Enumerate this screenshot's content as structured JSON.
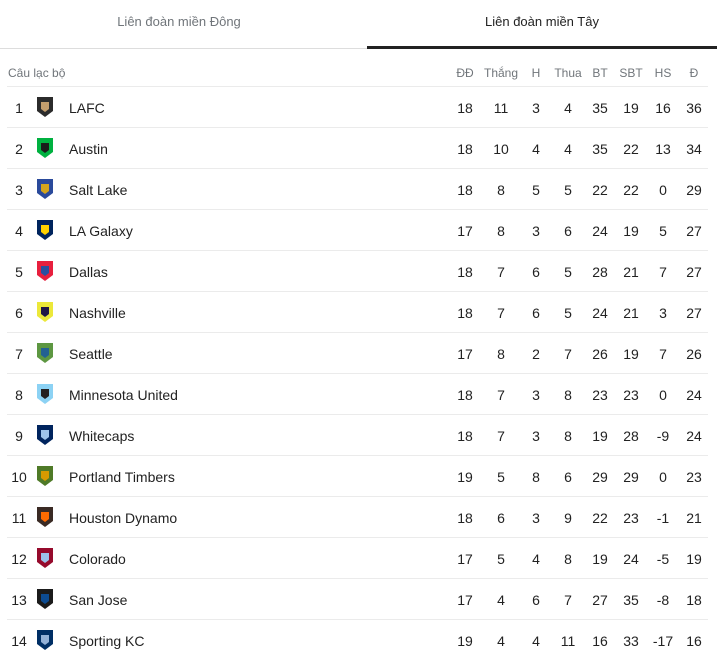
{
  "tabs": {
    "east": "Liên đoàn miền Đông",
    "west": "Liên đoàn miền Tây",
    "active": "west"
  },
  "columns": {
    "club": "Câu lạc bộ",
    "played": "ĐĐ",
    "won": "Thắng",
    "drawn": "H",
    "lost": "Thua",
    "gf": "BT",
    "ga": "SBT",
    "gd": "HS",
    "pts": "Đ"
  },
  "rows": [
    {
      "rank": "1",
      "name": "LAFC",
      "played": "18",
      "won": "11",
      "drawn": "3",
      "lost": "4",
      "gf": "35",
      "ga": "19",
      "gd": "16",
      "pts": "36",
      "color": "#2b2b2b",
      "accent": "#c39e6d"
    },
    {
      "rank": "2",
      "name": "Austin",
      "played": "18",
      "won": "10",
      "drawn": "4",
      "lost": "4",
      "gf": "35",
      "ga": "22",
      "gd": "13",
      "pts": "34",
      "color": "#00b140",
      "accent": "#1a1a1a"
    },
    {
      "rank": "3",
      "name": "Salt Lake",
      "played": "18",
      "won": "8",
      "drawn": "5",
      "lost": "5",
      "gf": "22",
      "ga": "22",
      "gd": "0",
      "pts": "29",
      "color": "#2a4a9b",
      "accent": "#d4a51c"
    },
    {
      "rank": "4",
      "name": "LA Galaxy",
      "played": "17",
      "won": "8",
      "drawn": "3",
      "lost": "6",
      "gf": "24",
      "ga": "19",
      "gd": "5",
      "pts": "27",
      "color": "#00245d",
      "accent": "#ffd200"
    },
    {
      "rank": "5",
      "name": "Dallas",
      "played": "18",
      "won": "7",
      "drawn": "6",
      "lost": "5",
      "gf": "28",
      "ga": "21",
      "gd": "7",
      "pts": "27",
      "color": "#e81f3e",
      "accent": "#2a4fa0"
    },
    {
      "rank": "6",
      "name": "Nashville",
      "played": "18",
      "won": "7",
      "drawn": "6",
      "lost": "5",
      "gf": "24",
      "ga": "21",
      "gd": "3",
      "pts": "27",
      "color": "#ece83a",
      "accent": "#1f1646"
    },
    {
      "rank": "7",
      "name": "Seattle",
      "played": "17",
      "won": "8",
      "drawn": "2",
      "lost": "7",
      "gf": "26",
      "ga": "19",
      "gd": "7",
      "pts": "26",
      "color": "#5d9741",
      "accent": "#236192"
    },
    {
      "rank": "8",
      "name": "Minnesota United",
      "played": "18",
      "won": "7",
      "drawn": "3",
      "lost": "8",
      "gf": "23",
      "ga": "23",
      "gd": "0",
      "pts": "24",
      "color": "#8cd2f4",
      "accent": "#231f20"
    },
    {
      "rank": "9",
      "name": "Whitecaps",
      "played": "18",
      "won": "7",
      "drawn": "3",
      "lost": "8",
      "gf": "19",
      "ga": "28",
      "gd": "-9",
      "pts": "24",
      "color": "#00245e",
      "accent": "#9dc2ea"
    },
    {
      "rank": "10",
      "name": "Portland Timbers",
      "played": "19",
      "won": "5",
      "drawn": "8",
      "lost": "6",
      "gf": "29",
      "ga": "29",
      "gd": "0",
      "pts": "23",
      "color": "#4f7a28",
      "accent": "#d69a00"
    },
    {
      "rank": "11",
      "name": "Houston Dynamo",
      "played": "18",
      "won": "6",
      "drawn": "3",
      "lost": "9",
      "gf": "22",
      "ga": "23",
      "gd": "-1",
      "pts": "21",
      "color": "#3a2a24",
      "accent": "#ff6b00"
    },
    {
      "rank": "12",
      "name": "Colorado",
      "played": "17",
      "won": "5",
      "drawn": "4",
      "lost": "8",
      "gf": "19",
      "ga": "24",
      "gd": "-5",
      "pts": "19",
      "color": "#960a2c",
      "accent": "#9cc2ea"
    },
    {
      "rank": "13",
      "name": "San Jose",
      "played": "17",
      "won": "4",
      "drawn": "6",
      "lost": "7",
      "gf": "27",
      "ga": "35",
      "gd": "-8",
      "pts": "18",
      "color": "#1b1b1b",
      "accent": "#0d4c92"
    },
    {
      "rank": "14",
      "name": "Sporting KC",
      "played": "19",
      "won": "4",
      "drawn": "4",
      "lost": "11",
      "gf": "16",
      "ga": "33",
      "gd": "-17",
      "pts": "16",
      "color": "#002f65",
      "accent": "#93b1d7"
    }
  ]
}
